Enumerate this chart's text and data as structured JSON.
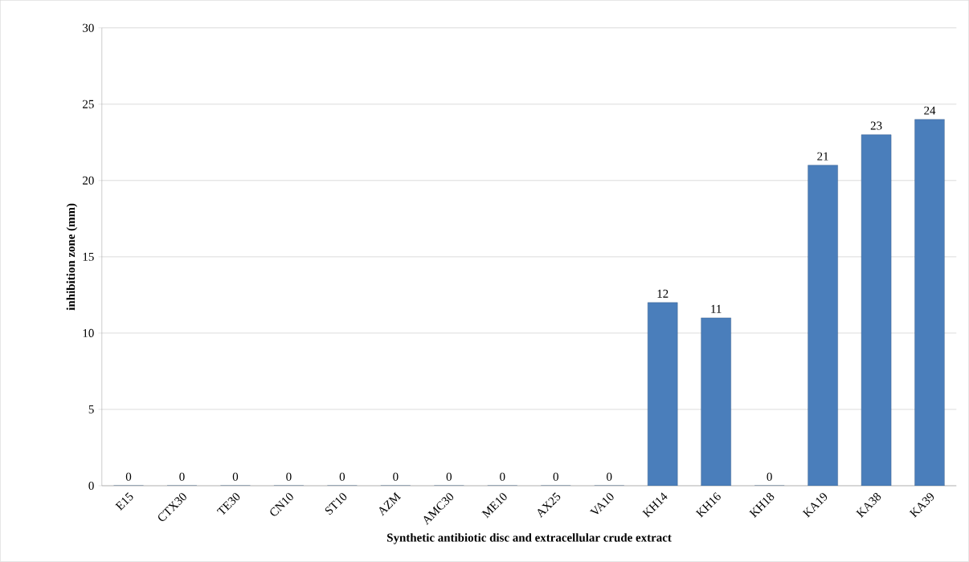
{
  "chart_data": {
    "type": "bar",
    "xlabel": "Synthetic  antibiotic disc and  extracellular crude extract",
    "ylabel": "inhibition zone (mm)",
    "categories": [
      "E15",
      "CTX30",
      "TE30",
      "CN10",
      "ST10",
      "AZM",
      "AMC30",
      "ME10",
      "AX25",
      "VA10",
      "KH14",
      "KH16",
      "KH18",
      "KA19",
      "KA38",
      "KA39"
    ],
    "values": [
      0,
      0,
      0,
      0,
      0,
      0,
      0,
      0,
      0,
      0,
      12,
      11,
      0,
      21,
      23,
      24
    ],
    "color": "#4a7ebb",
    "ylim": [
      0,
      30
    ],
    "yticks": [
      0,
      5,
      10,
      15,
      20,
      25,
      30
    ],
    "grid": "y",
    "data_labels": true
  }
}
